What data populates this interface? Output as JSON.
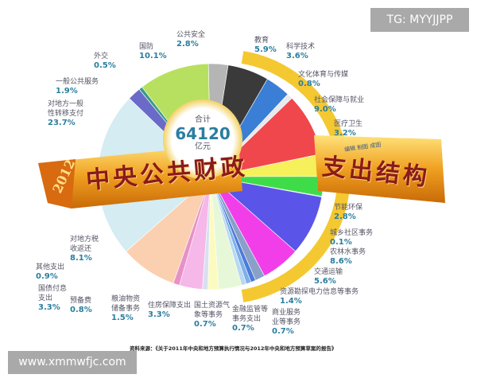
{
  "chart_data": {
    "type": "pie",
    "title_left": "中央公共财政",
    "title_right": "支出结构",
    "year": "2012",
    "total_label": "合计",
    "total_value": "64120",
    "total_unit": "亿元",
    "credit": "编辑 制图 成图",
    "source": "资料来源：《关于2011年中央和地方预算执行情况与2012年中央和地方预算草案的报告》",
    "slices": [
      {
        "name": "公共安全",
        "value": 2.8,
        "label": "2.8%",
        "color": "#b5b5b5"
      },
      {
        "name": "教育",
        "value": 5.9,
        "label": "5.9%",
        "color": "#3a3a3a"
      },
      {
        "name": "科学技术",
        "value": 3.6,
        "label": "3.6%",
        "color": "#3a7fd5"
      },
      {
        "name": "文化体育与传媒",
        "value": 0.8,
        "label": "0.8%",
        "color": "#e8e8f0"
      },
      {
        "name": "社会保障与就业",
        "value": 9.0,
        "label": "9.0%",
        "color": "#f0474c"
      },
      {
        "name": "医疗卫生",
        "value": 3.2,
        "label": "3.2%",
        "color": "#f6f05a"
      },
      {
        "name": "节能环保",
        "value": 2.8,
        "label": "2.8%",
        "color": "#3fdc4a"
      },
      {
        "name": "城乡社区事务",
        "value": 0.1,
        "label": "0.1%",
        "color": "#1a9ad0"
      },
      {
        "name": "农林水事务",
        "value": 8.6,
        "label": "8.6%",
        "color": "#5a55e8"
      },
      {
        "name": "交通运输",
        "value": 5.6,
        "label": "5.6%",
        "color": "#f23ee8"
      },
      {
        "name": "资源勘探电力信息等事务",
        "value": 1.4,
        "label": "1.4%",
        "color": "#8aa0c8"
      },
      {
        "name": "商业服务业等事务",
        "value": 0.7,
        "label": "0.7%",
        "color": "#4d7bd8"
      },
      {
        "name": "金融监管等事务支出",
        "value": 0.7,
        "label": "0.7%",
        "color": "#7fb0ea"
      },
      {
        "name": "国土资源气象等事务",
        "value": 0.7,
        "label": "0.7%",
        "color": "#b8d8f0"
      },
      {
        "name": "住房保障支出",
        "value": 3.3,
        "label": "3.3%",
        "color": "#e6f8d8"
      },
      {
        "name": "粮油物资储备事务",
        "value": 1.5,
        "label": "1.5%",
        "color": "#fbfbc0"
      },
      {
        "name": "预备费",
        "value": 0.8,
        "label": "0.8%",
        "color": "#d8e0f0"
      },
      {
        "name": "国债付息支出",
        "value": 3.3,
        "label": "3.3%",
        "color": "#f5b8e8"
      },
      {
        "name": "其他支出",
        "value": 0.9,
        "label": "0.9%",
        "color": "#e890c8"
      },
      {
        "name": "对地方税收返还",
        "value": 8.1,
        "label": "8.1%",
        "color": "#fbd0b0"
      },
      {
        "name": "对地方一般性转移支付",
        "value": 23.7,
        "label": "23.7%",
        "color": "#d4ecf2"
      },
      {
        "name": "一般公共服务",
        "value": 1.9,
        "label": "1.9%",
        "color": "#6a6ac8"
      },
      {
        "name": "外交",
        "value": 0.5,
        "label": "0.5%",
        "color": "#3a9a8a"
      },
      {
        "name": "国防",
        "value": 10.1,
        "label": "10.1%",
        "color": "#b8e060"
      }
    ]
  },
  "watermarks": {
    "top": "TG: MYYJJPP",
    "bottom": "www.xmmwfjc.com"
  }
}
